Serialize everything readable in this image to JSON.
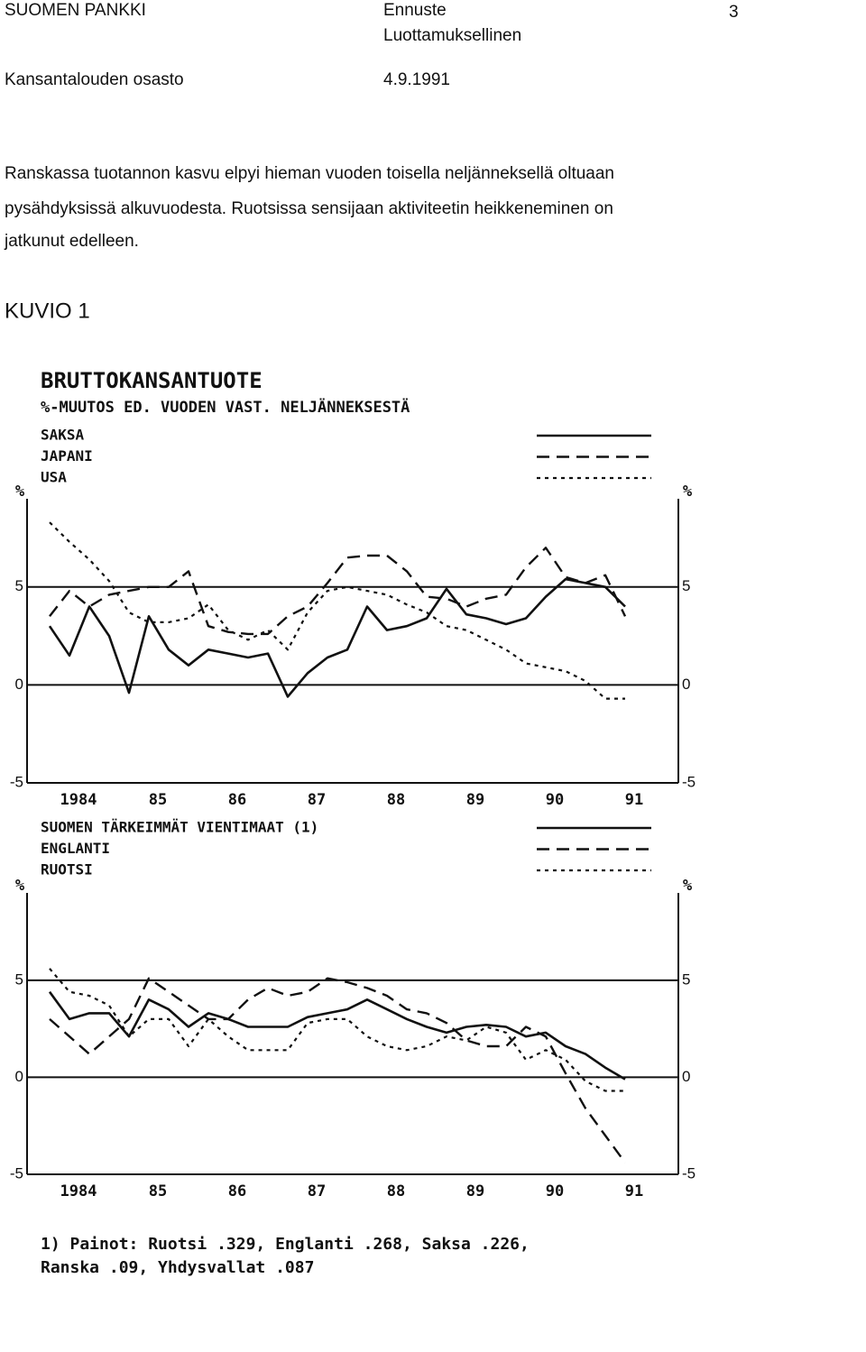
{
  "header": {
    "organization": "SUOMEN PANKKI",
    "doc_type": "Ennuste",
    "classification": "Luottamuksellinen",
    "page": "3",
    "department": "Kansantalouden osasto",
    "date": "4.9.1991"
  },
  "body": [
    "Ranskassa tuotannon kasvu elpyi hieman vuoden toisella neljänneksellä oltuaan",
    "pysähdyksissä alkuvuodesta. Ruotsissa sensijaan aktiviteetin heikkeneminen on",
    "jatkunut edelleen."
  ],
  "figure_label": "KUVIO 1",
  "chart_data": [
    {
      "type": "line",
      "title": "BRUTTOKANSANTUOTE",
      "subtitle": "%-MUUTOS ED. VUODEN VAST. NELJÄNNEKSESTÄ",
      "y_label": "%",
      "categories": [
        null,
        "1984",
        null,
        null,
        null,
        "85",
        null,
        null,
        null,
        "86",
        null,
        null,
        null,
        "87",
        null,
        null,
        null,
        "88",
        null,
        null,
        null,
        "89",
        null,
        null,
        null,
        "90",
        null,
        null,
        null,
        "91"
      ],
      "ylim": [
        -5,
        9.5
      ],
      "yticks": [
        -5,
        0,
        5
      ],
      "grid": true,
      "series": [
        {
          "name": "SAKSA",
          "color": "#111111",
          "line_style": "solid",
          "values": [
            3.0,
            1.5,
            4.0,
            2.5,
            -0.4,
            3.5,
            1.8,
            1.0,
            1.8,
            1.6,
            1.4,
            1.6,
            -0.6,
            0.6,
            1.4,
            1.8,
            4.0,
            2.8,
            3.0,
            3.4,
            4.9,
            3.6,
            3.4,
            3.1,
            3.4,
            4.5,
            5.4,
            5.2,
            5.0,
            4.0
          ]
        },
        {
          "name": "JAPANI",
          "color": "#111111",
          "line_style": "dashed",
          "values": [
            3.5,
            4.8,
            4.0,
            4.6,
            4.8,
            5.0,
            5.0,
            5.8,
            3.0,
            2.7,
            2.6,
            2.6,
            3.5,
            4.0,
            5.2,
            6.5,
            6.6,
            6.6,
            5.8,
            4.5,
            4.4,
            4.0,
            4.4,
            4.6,
            6.0,
            7.0,
            5.5,
            5.2,
            5.6,
            3.5
          ]
        },
        {
          "name": "USA",
          "color": "#111111",
          "line_style": "dotted",
          "values": [
            8.3,
            7.3,
            6.4,
            5.3,
            3.7,
            3.2,
            3.2,
            3.4,
            4.1,
            2.8,
            2.3,
            2.8,
            1.8,
            3.7,
            4.8,
            5.0,
            4.8,
            4.6,
            4.1,
            3.7,
            3.0,
            2.8,
            2.3,
            1.8,
            1.1,
            0.9,
            0.7,
            0.2,
            -0.7,
            -0.7
          ]
        }
      ]
    },
    {
      "type": "line",
      "y_label": "%",
      "categories": [
        null,
        "1984",
        null,
        null,
        null,
        "85",
        null,
        null,
        null,
        "86",
        null,
        null,
        null,
        "87",
        null,
        null,
        null,
        "88",
        null,
        null,
        null,
        "89",
        null,
        null,
        null,
        "90",
        null,
        null,
        null,
        "91"
      ],
      "ylim": [
        -5,
        9.5
      ],
      "yticks": [
        -5,
        0,
        5
      ],
      "grid": true,
      "series": [
        {
          "name": "SUOMEN TÄRKEIMMÄT VIENTIMAAT (1)",
          "color": "#111111",
          "line_style": "solid",
          "values": [
            4.4,
            3.0,
            3.3,
            3.3,
            2.1,
            4.0,
            3.5,
            2.6,
            3.3,
            3.0,
            2.6,
            2.6,
            2.6,
            3.1,
            3.3,
            3.5,
            4.0,
            3.5,
            3.0,
            2.6,
            2.3,
            2.6,
            2.7,
            2.6,
            2.1,
            2.3,
            1.6,
            1.2,
            0.5,
            -0.1
          ]
        },
        {
          "name": "ENGLANTI",
          "color": "#111111",
          "line_style": "dashed",
          "values": [
            3.0,
            2.1,
            1.2,
            2.1,
            3.0,
            5.1,
            4.4,
            3.7,
            3.0,
            3.0,
            4.0,
            4.6,
            4.2,
            4.4,
            5.1,
            4.9,
            4.6,
            4.2,
            3.5,
            3.3,
            2.8,
            1.9,
            1.6,
            1.6,
            2.6,
            2.1,
            0.2,
            -1.6,
            -3.0,
            -4.4
          ]
        },
        {
          "name": "RUOTSI",
          "color": "#111111",
          "line_style": "dotted",
          "values": [
            5.6,
            4.4,
            4.2,
            3.7,
            2.1,
            3.0,
            3.0,
            1.6,
            3.0,
            2.1,
            1.4,
            1.4,
            1.4,
            2.8,
            3.0,
            3.0,
            2.1,
            1.6,
            1.4,
            1.6,
            2.1,
            1.9,
            2.6,
            2.3,
            0.9,
            1.4,
            0.9,
            -0.2,
            -0.7,
            -0.7
          ]
        }
      ]
    }
  ],
  "footnote": [
    "1) Painot: Ruotsi .329, Englanti .268, Saksa .226,",
    "Ranska .09, Yhdysvallat .087"
  ]
}
